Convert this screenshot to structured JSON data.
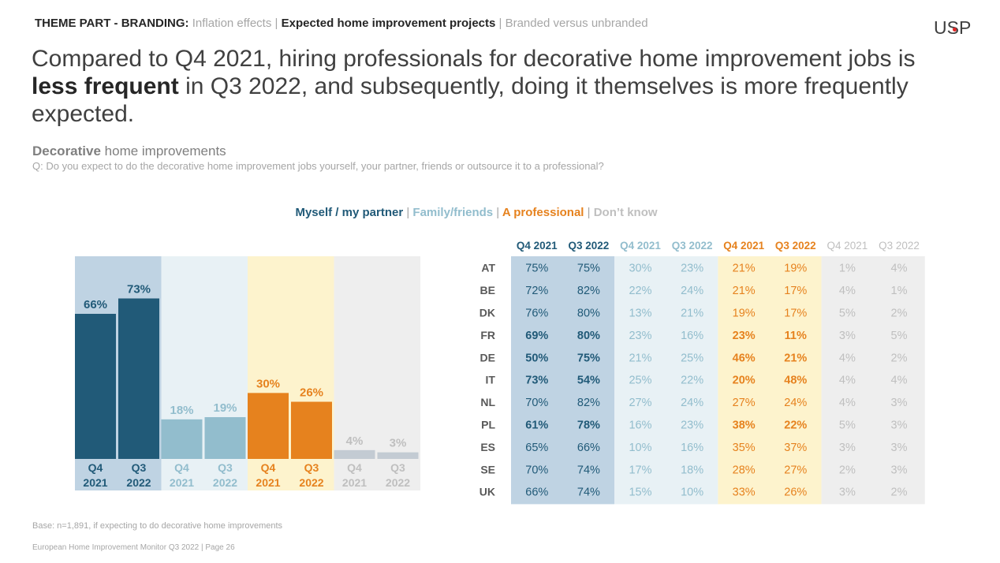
{
  "breadcrumb": {
    "theme": "THEME PART - BRANDING:",
    "item1": "Inflation effects",
    "sep1": "|",
    "item2": "Expected home improvement projects",
    "sep2": "|",
    "item3": "Branded versus unbranded"
  },
  "logo": {
    "text": "USP"
  },
  "headline": {
    "part1": "Compared to Q4 2021, hiring professionals for decorative home improvement jobs is ",
    "bold": "less frequent",
    "part2": " in Q3 2022, and subsequently, doing it themselves is more frequently expected."
  },
  "subtitle": {
    "bold": "Decorative",
    "rest": " home improvements"
  },
  "question": "Q: Do you expect to do the decorative home improvement jobs yourself, your partner, friends or outsource it to a professional?",
  "legend": {
    "items": [
      "Myself / my partner",
      "Family/friends",
      "A professional",
      "Don’t know"
    ],
    "separator": "|"
  },
  "colors": {
    "myself_bar": "#215a78",
    "myself_bg": "#bfd3e3",
    "myself_text": "#215a78",
    "family_bar": "#92bdcd",
    "family_bg": "#e8f1f5",
    "family_text": "#92bdcd",
    "prof_bar": "#e6821e",
    "prof_bg": "#fdf3cd",
    "prof_text": "#e6821e",
    "dk_bar": "#c3cbd3",
    "dk_bg": "#eeeeee",
    "dk_text": "#bfbfbf"
  },
  "chart_data": [
    {
      "type": "bar",
      "categories": [
        "Q4 2021",
        "Q3 2022"
      ],
      "series": [
        {
          "name": "Myself / my partner",
          "values": [
            66,
            73
          ]
        },
        {
          "name": "Family/friends",
          "values": [
            18,
            19
          ]
        },
        {
          "name": "A professional",
          "values": [
            30,
            26
          ]
        },
        {
          "name": "Don’t know",
          "values": [
            4,
            3
          ]
        }
      ],
      "value_suffix": "%",
      "ylim": [
        0,
        100
      ]
    },
    {
      "type": "table",
      "columns": [
        {
          "group": "Myself / my partner",
          "label": "Q4 2021"
        },
        {
          "group": "Myself / my partner",
          "label": "Q3 2022"
        },
        {
          "group": "Family/friends",
          "label": "Q4 2021"
        },
        {
          "group": "Family/friends",
          "label": "Q3 2022"
        },
        {
          "group": "A professional",
          "label": "Q4 2021"
        },
        {
          "group": "A professional",
          "label": "Q3 2022"
        },
        {
          "group": "Don’t know",
          "label": "Q4 2021"
        },
        {
          "group": "Don’t know",
          "label": "Q3 2022"
        }
      ],
      "rows": [
        {
          "country": "AT",
          "values": [
            "75%",
            "75%",
            "30%",
            "23%",
            "21%",
            "19%",
            "1%",
            "4%"
          ],
          "bold": false
        },
        {
          "country": "BE",
          "values": [
            "72%",
            "82%",
            "22%",
            "24%",
            "21%",
            "17%",
            "4%",
            "1%"
          ],
          "bold": false
        },
        {
          "country": "DK",
          "values": [
            "76%",
            "80%",
            "13%",
            "21%",
            "19%",
            "17%",
            "5%",
            "2%"
          ],
          "bold": false
        },
        {
          "country": "FR",
          "values": [
            "69%",
            "80%",
            "23%",
            "16%",
            "23%",
            "11%",
            "3%",
            "5%"
          ],
          "bold": true
        },
        {
          "country": "DE",
          "values": [
            "50%",
            "75%",
            "21%",
            "25%",
            "46%",
            "21%",
            "4%",
            "2%"
          ],
          "bold": true
        },
        {
          "country": "IT",
          "values": [
            "73%",
            "54%",
            "25%",
            "22%",
            "20%",
            "48%",
            "4%",
            "4%"
          ],
          "bold": true
        },
        {
          "country": "NL",
          "values": [
            "70%",
            "82%",
            "27%",
            "24%",
            "27%",
            "24%",
            "4%",
            "3%"
          ],
          "bold": false
        },
        {
          "country": "PL",
          "values": [
            "61%",
            "78%",
            "16%",
            "23%",
            "38%",
            "22%",
            "5%",
            "3%"
          ],
          "bold": true
        },
        {
          "country": "ES",
          "values": [
            "65%",
            "66%",
            "10%",
            "16%",
            "35%",
            "37%",
            "3%",
            "3%"
          ],
          "bold": false
        },
        {
          "country": "SE",
          "values": [
            "70%",
            "74%",
            "17%",
            "18%",
            "28%",
            "27%",
            "2%",
            "3%"
          ],
          "bold": false
        },
        {
          "country": "UK",
          "values": [
            "66%",
            "74%",
            "15%",
            "10%",
            "33%",
            "26%",
            "3%",
            "2%"
          ],
          "bold": false
        }
      ]
    }
  ],
  "base_note": "Base: n=1,891, if expecting to do decorative home improvements",
  "footer": "European Home Improvement Monitor Q3 2022 | Page 26"
}
